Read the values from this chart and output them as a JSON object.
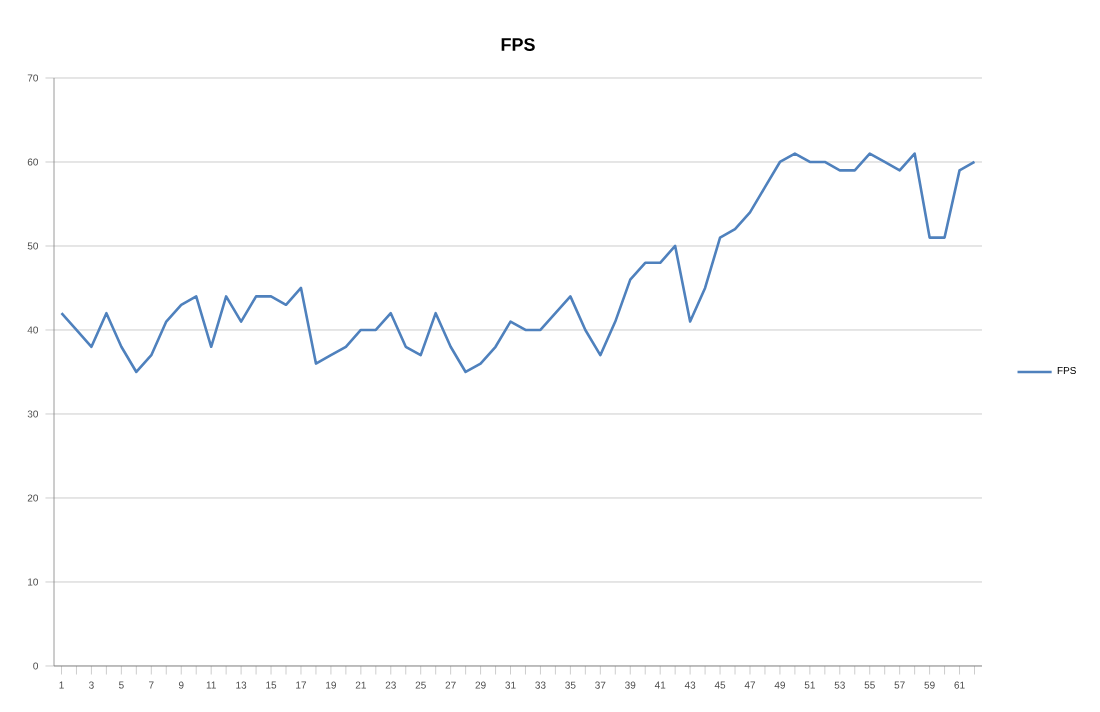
{
  "chart_data": {
    "type": "line",
    "title": "FPS",
    "categories": [
      "1",
      null,
      "3",
      null,
      "5",
      null,
      "7",
      null,
      "9",
      null,
      "11",
      null,
      "13",
      null,
      "15",
      null,
      "17",
      null,
      "19",
      null,
      "21",
      null,
      "23",
      null,
      "25",
      null,
      "27",
      null,
      "29",
      null,
      "31",
      null,
      "33",
      null,
      "35",
      null,
      "37",
      null,
      "39",
      null,
      "41",
      null,
      "43",
      null,
      "45",
      null,
      "47",
      null,
      "49",
      null,
      "51",
      null,
      "53",
      null,
      "55",
      null,
      "57",
      null,
      "59",
      null,
      "61",
      null
    ],
    "series": [
      {
        "name": "FPS",
        "color": "#4f81bd",
        "values": [
          42,
          40,
          38,
          42,
          38,
          35,
          37,
          41,
          43,
          44,
          38,
          44,
          41,
          44,
          44,
          43,
          45,
          36,
          37,
          38,
          40,
          40,
          42,
          38,
          37,
          42,
          38,
          35,
          36,
          38,
          41,
          40,
          40,
          42,
          44,
          40,
          37,
          41,
          46,
          48,
          48,
          50,
          41,
          45,
          51,
          52,
          54,
          57,
          60,
          61,
          60,
          60,
          59,
          59,
          61,
          60,
          59,
          61,
          51,
          51,
          59,
          60
        ]
      }
    ],
    "ylim": [
      0,
      70
    ],
    "yticks": [
      0,
      10,
      20,
      30,
      40,
      50,
      60,
      70
    ],
    "grid": "y",
    "legend": "right",
    "marker": "none",
    "line_style": "solid"
  }
}
